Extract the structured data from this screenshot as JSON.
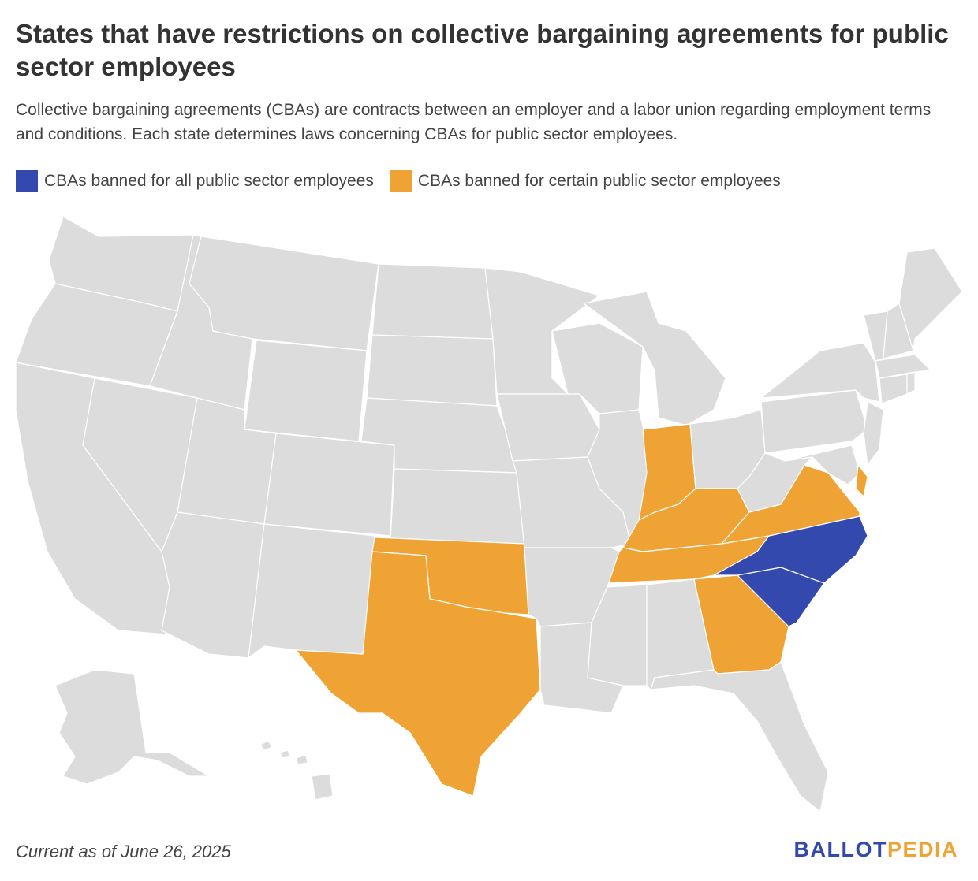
{
  "title": "States that have restrictions on collective bargaining agreements for public sector employees",
  "subtitle": "Collective bargaining agreements (CBAs) are contracts between an employer and a labor union regarding employment terms and conditions. Each state determines laws concerning CBAs for public sector employees.",
  "legend": [
    {
      "label": "CBAs banned for all public sector employees",
      "color": "#3349ad"
    },
    {
      "label": "CBAs banned for certain public sector employees",
      "color": "#f0a335"
    }
  ],
  "colors": {
    "default": "#dcdcdc",
    "all": "#3349ad",
    "certain": "#f0a335"
  },
  "map_data": {
    "banned_all": [
      "North Carolina",
      "South Carolina"
    ],
    "banned_certain": [
      "Texas",
      "Oklahoma",
      "Indiana",
      "Kentucky",
      "Tennessee",
      "Virginia",
      "Georgia",
      "Delaware"
    ]
  },
  "footer": {
    "note": "Current as of June 26, 2025",
    "brand_part1": "BALLOT",
    "brand_part2": "PEDIA",
    "brand_color1": "#3349ad",
    "brand_color2": "#f0a335"
  }
}
